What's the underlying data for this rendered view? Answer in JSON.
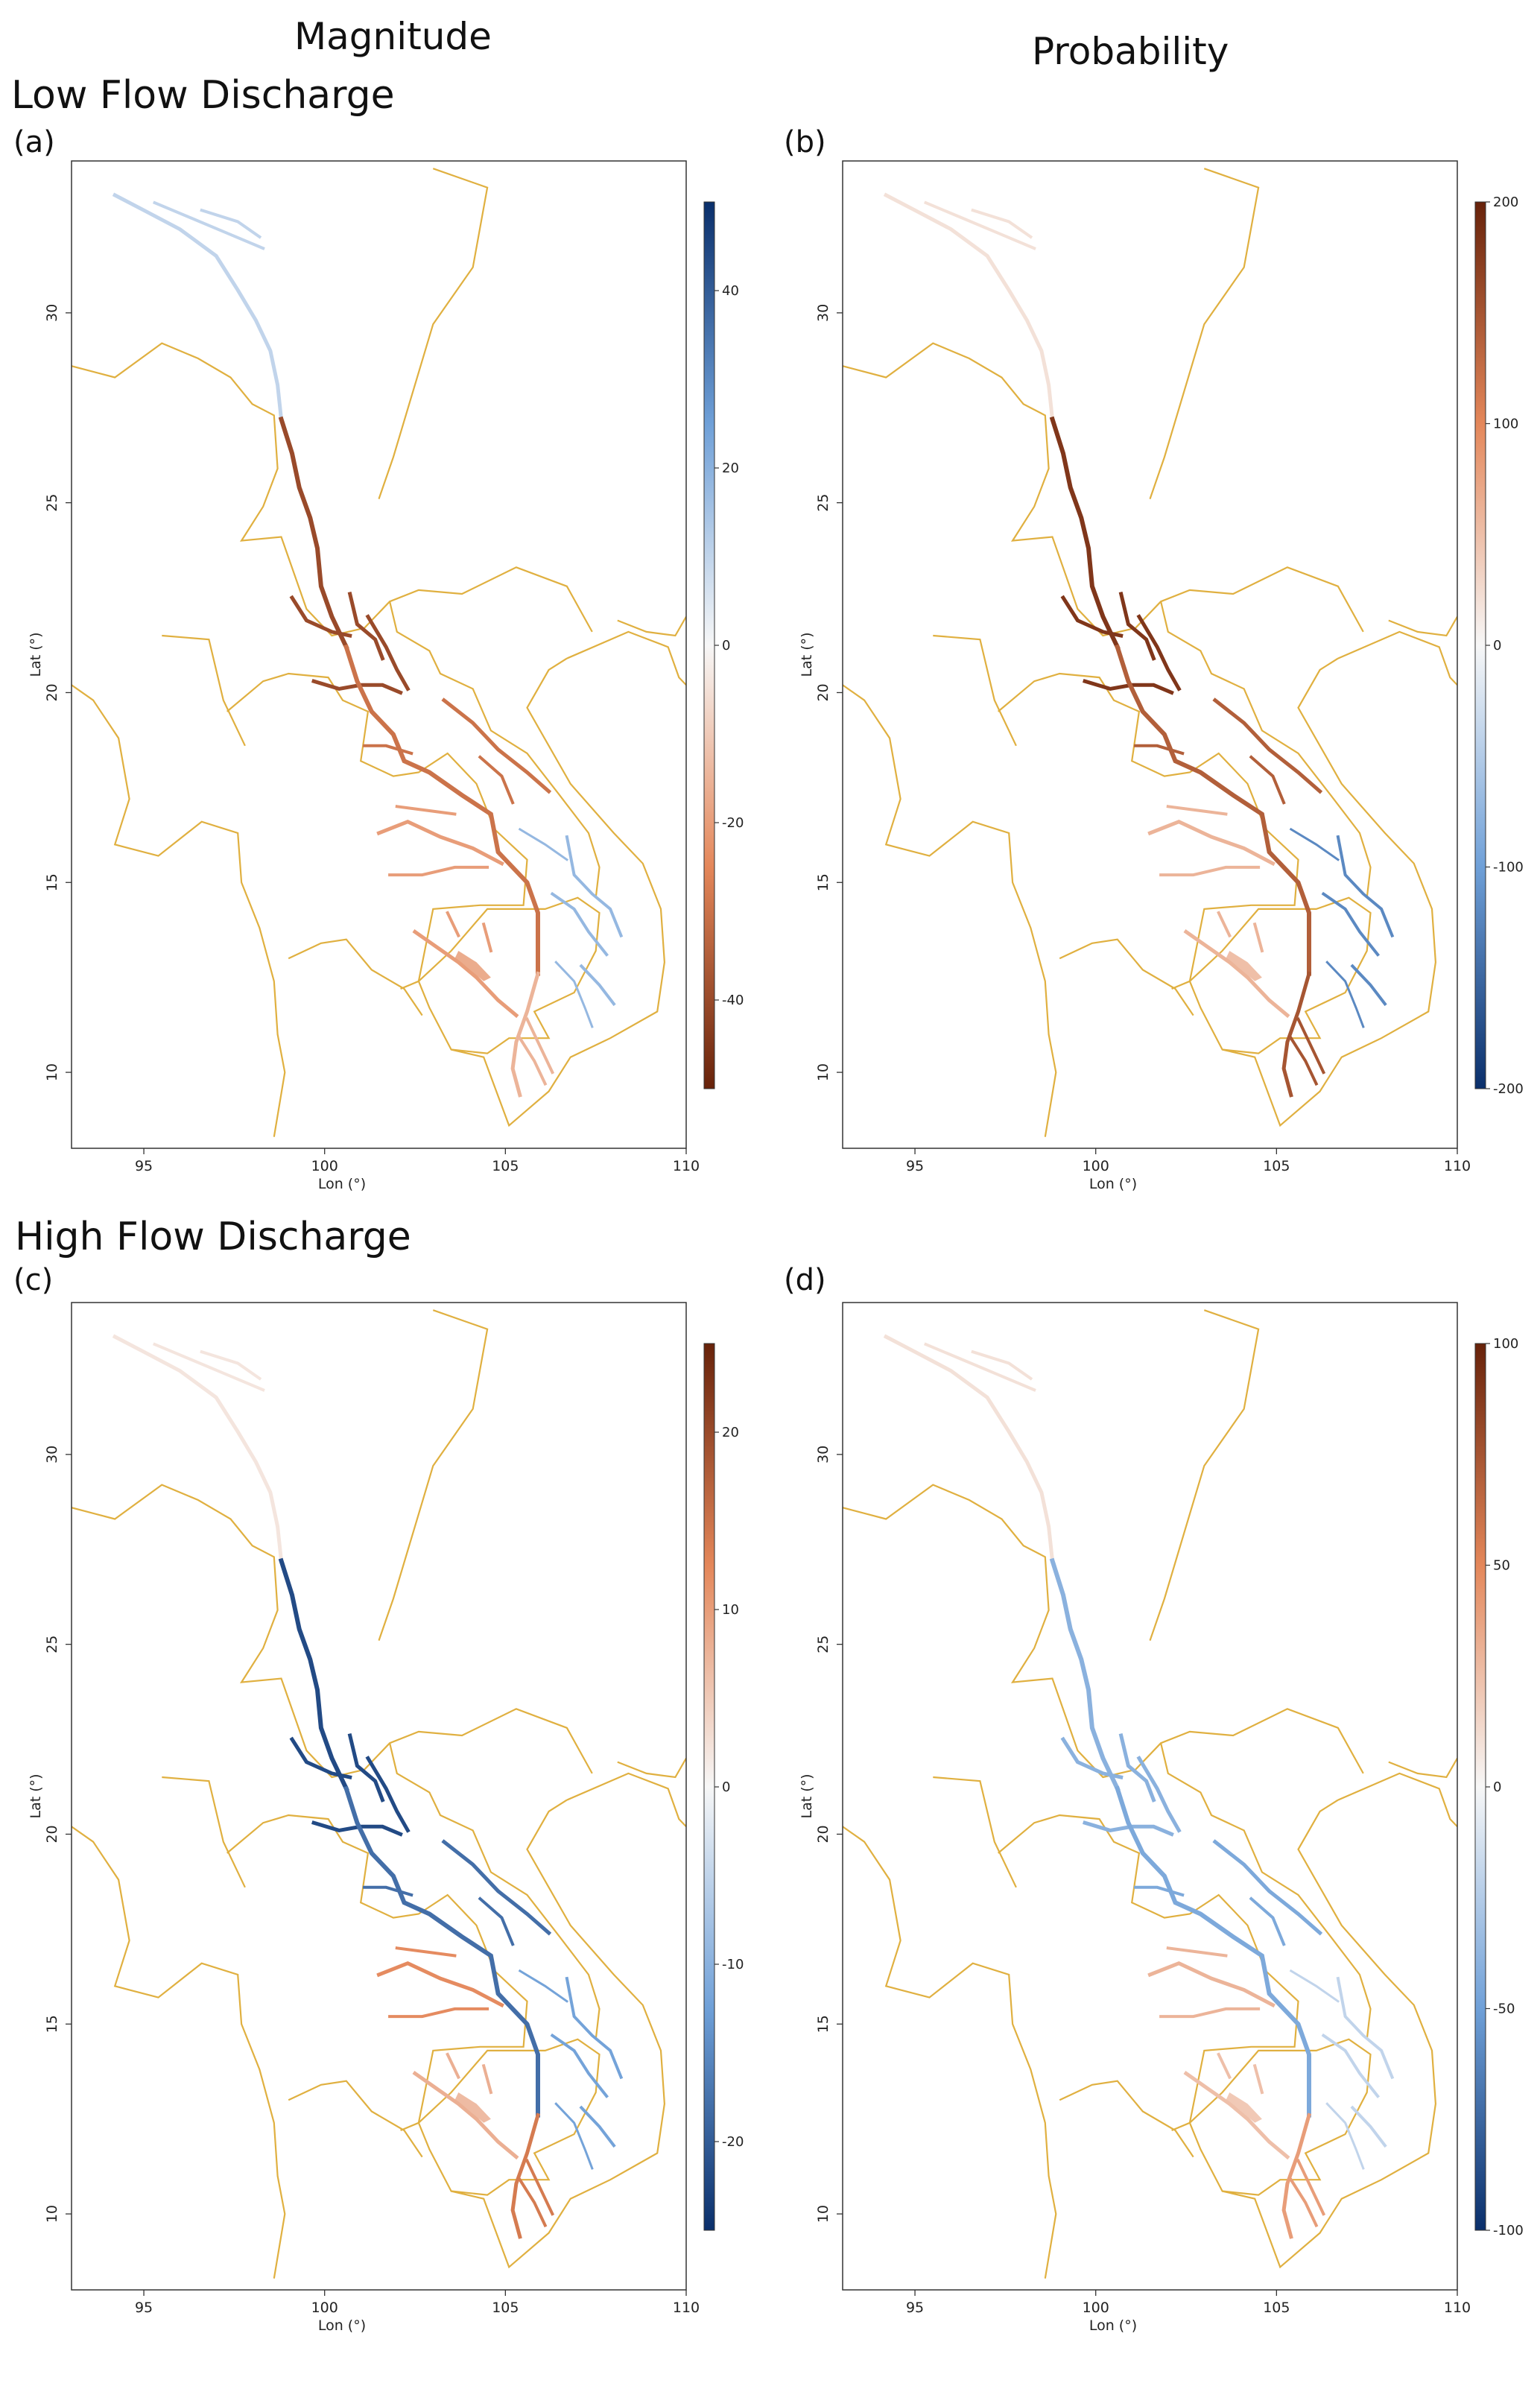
{
  "headers": {
    "magnitude": "Magnitude",
    "probability": "Probability",
    "low_flow": "Low Flow Discharge",
    "high_flow": "High Flow Discharge"
  },
  "colors": {
    "border": "#e0b040",
    "positive_dark": "#67220a",
    "positive_mid": "#e4875a",
    "neutral": "#f7f7f7",
    "negative_mid": "#6fa0d8",
    "negative_dark": "#0a2f6b"
  },
  "chart_data": [
    {
      "type": "heatmap",
      "panel": "(a)",
      "xlabel": "Lon (°)",
      "ylabel": "Lat (°)",
      "xlim": [
        93,
        110
      ],
      "ylim": [
        8,
        34
      ],
      "xticks": [
        "95",
        "100",
        "105",
        "110"
      ],
      "yticks": [
        "10",
        "15",
        "20",
        "25",
        "30"
      ],
      "colorbar": {
        "min": -50,
        "max": 50,
        "ticks": [
          "40",
          "20",
          "0",
          "-20",
          "-40"
        ],
        "tick_values": [
          40,
          20,
          0,
          -20,
          -40
        ],
        "top_color": "negative",
        "bottom_color": "positive"
      },
      "values_by_region": {
        "upper_basin": 10,
        "upper_middle": -40,
        "middle": -30,
        "lower_north": -20,
        "delta": -15,
        "tonle_sap": -20,
        "se_highlands": 18
      }
    },
    {
      "type": "heatmap",
      "panel": "(b)",
      "xlabel": "Lon (°)",
      "ylabel": "Lat (°)",
      "xlim": [
        93,
        110
      ],
      "ylim": [
        8,
        34
      ],
      "xticks": [
        "95",
        "100",
        "105",
        "110"
      ],
      "yticks": [
        "10",
        "15",
        "20",
        "25",
        "30"
      ],
      "colorbar": {
        "min": -200,
        "max": 200,
        "ticks": [
          "200",
          "100",
          "0",
          "-100",
          "-200"
        ],
        "tick_values": [
          200,
          100,
          0,
          -100,
          -200
        ],
        "top_color": "positive",
        "bottom_color": "negative"
      },
      "values_by_region": {
        "upper_basin": 20,
        "upper_middle": 180,
        "middle": 140,
        "lower_north": 60,
        "delta": 150,
        "tonle_sap": 60,
        "se_highlands": -120
      }
    },
    {
      "type": "heatmap",
      "panel": "(c)",
      "xlabel": "Lon (°)",
      "ylabel": "Lat (°)",
      "xlim": [
        93,
        110
      ],
      "ylim": [
        8,
        34
      ],
      "xticks": [
        "95",
        "100",
        "105",
        "110"
      ],
      "yticks": [
        "10",
        "15",
        "20",
        "25",
        "30"
      ],
      "colorbar": {
        "min": -25,
        "max": 25,
        "ticks": [
          "20",
          "10",
          "0",
          "-10",
          "-20"
        ],
        "tick_values": [
          20,
          10,
          0,
          -10,
          -20
        ],
        "top_color": "positive",
        "bottom_color": "negative"
      },
      "values_by_region": {
        "upper_basin": 2,
        "upper_middle": -22,
        "middle": -18,
        "lower_north": 12,
        "delta": 14,
        "tonle_sap": 8,
        "se_highlands": -12
      }
    },
    {
      "type": "heatmap",
      "panel": "(d)",
      "xlabel": "Lon (°)",
      "ylabel": "Lat (°)",
      "xlim": [
        93,
        110
      ],
      "ylim": [
        8,
        34
      ],
      "xticks": [
        "95",
        "100",
        "105",
        "110"
      ],
      "yticks": [
        "10",
        "15",
        "20",
        "25",
        "30"
      ],
      "colorbar": {
        "min": -100,
        "max": 100,
        "ticks": [
          "100",
          "50",
          "0",
          "-50",
          "-100"
        ],
        "tick_values": [
          100,
          50,
          0,
          -50,
          -100
        ],
        "top_color": "positive",
        "bottom_color": "negative"
      },
      "values_by_region": {
        "upper_basin": 10,
        "upper_middle": -40,
        "middle": -45,
        "lower_north": 30,
        "delta": 40,
        "tonle_sap": 25,
        "se_highlands": -20
      }
    }
  ]
}
